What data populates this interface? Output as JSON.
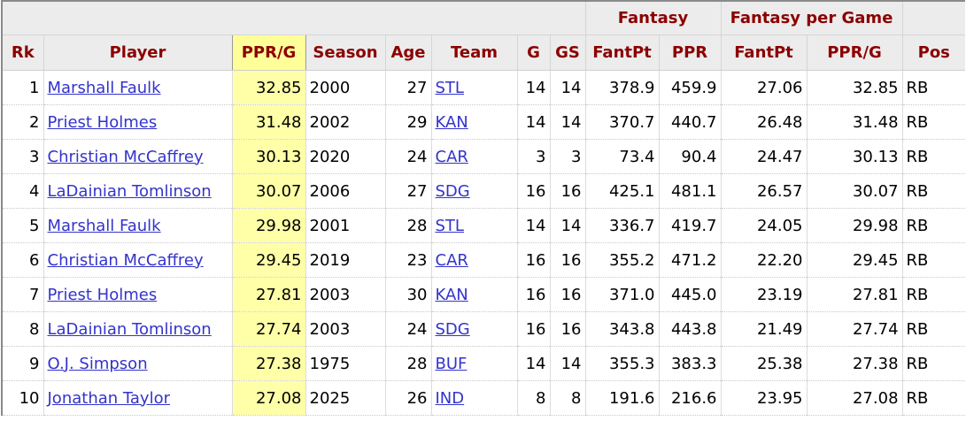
{
  "table": {
    "group_headers": {
      "fantasy": "Fantasy",
      "fantasy_per_game": "Fantasy per Game"
    },
    "columns": [
      "Rk",
      "Player",
      "PPR/G",
      "Season",
      "Age",
      "Team",
      "G",
      "GS",
      "FantPt",
      "PPR",
      "FantPt",
      "PPR/G",
      "Pos"
    ],
    "sorted_column": "PPR/G",
    "colors": {
      "header_text": "#8b0000",
      "header_bg": "#ececec",
      "sorted_bg": "#ffff99",
      "link": "#3333cc"
    },
    "rows": [
      {
        "rk": "1",
        "player": "Marshall Faulk",
        "pprg": "32.85",
        "season": "2000",
        "age": "27",
        "team": "STL",
        "g": "14",
        "gs": "14",
        "fantpt": "378.9",
        "ppr": "459.9",
        "pg_fantpt": "27.06",
        "pg_pprg": "32.85",
        "pos": "RB"
      },
      {
        "rk": "2",
        "player": "Priest Holmes",
        "pprg": "31.48",
        "season": "2002",
        "age": "29",
        "team": "KAN",
        "g": "14",
        "gs": "14",
        "fantpt": "370.7",
        "ppr": "440.7",
        "pg_fantpt": "26.48",
        "pg_pprg": "31.48",
        "pos": "RB"
      },
      {
        "rk": "3",
        "player": "Christian McCaffrey",
        "pprg": "30.13",
        "season": "2020",
        "age": "24",
        "team": "CAR",
        "g": "3",
        "gs": "3",
        "fantpt": "73.4",
        "ppr": "90.4",
        "pg_fantpt": "24.47",
        "pg_pprg": "30.13",
        "pos": "RB"
      },
      {
        "rk": "4",
        "player": "LaDainian Tomlinson",
        "pprg": "30.07",
        "season": "2006",
        "age": "27",
        "team": "SDG",
        "g": "16",
        "gs": "16",
        "fantpt": "425.1",
        "ppr": "481.1",
        "pg_fantpt": "26.57",
        "pg_pprg": "30.07",
        "pos": "RB"
      },
      {
        "rk": "5",
        "player": "Marshall Faulk",
        "pprg": "29.98",
        "season": "2001",
        "age": "28",
        "team": "STL",
        "g": "14",
        "gs": "14",
        "fantpt": "336.7",
        "ppr": "419.7",
        "pg_fantpt": "24.05",
        "pg_pprg": "29.98",
        "pos": "RB"
      },
      {
        "rk": "6",
        "player": "Christian McCaffrey",
        "pprg": "29.45",
        "season": "2019",
        "age": "23",
        "team": "CAR",
        "g": "16",
        "gs": "16",
        "fantpt": "355.2",
        "ppr": "471.2",
        "pg_fantpt": "22.20",
        "pg_pprg": "29.45",
        "pos": "RB"
      },
      {
        "rk": "7",
        "player": "Priest Holmes",
        "pprg": "27.81",
        "season": "2003",
        "age": "30",
        "team": "KAN",
        "g": "16",
        "gs": "16",
        "fantpt": "371.0",
        "ppr": "445.0",
        "pg_fantpt": "23.19",
        "pg_pprg": "27.81",
        "pos": "RB"
      },
      {
        "rk": "8",
        "player": "LaDainian Tomlinson",
        "pprg": "27.74",
        "season": "2003",
        "age": "24",
        "team": "SDG",
        "g": "16",
        "gs": "16",
        "fantpt": "343.8",
        "ppr": "443.8",
        "pg_fantpt": "21.49",
        "pg_pprg": "27.74",
        "pos": "RB"
      },
      {
        "rk": "9",
        "player": "O.J. Simpson",
        "pprg": "27.38",
        "season": "1975",
        "age": "28",
        "team": "BUF",
        "g": "14",
        "gs": "14",
        "fantpt": "355.3",
        "ppr": "383.3",
        "pg_fantpt": "25.38",
        "pg_pprg": "27.38",
        "pos": "RB"
      },
      {
        "rk": "10",
        "player": "Jonathan Taylor",
        "pprg": "27.08",
        "season": "2025",
        "age": "26",
        "team": "IND",
        "g": "8",
        "gs": "8",
        "fantpt": "191.6",
        "ppr": "216.6",
        "pg_fantpt": "23.95",
        "pg_pprg": "27.08",
        "pos": "RB"
      }
    ]
  }
}
